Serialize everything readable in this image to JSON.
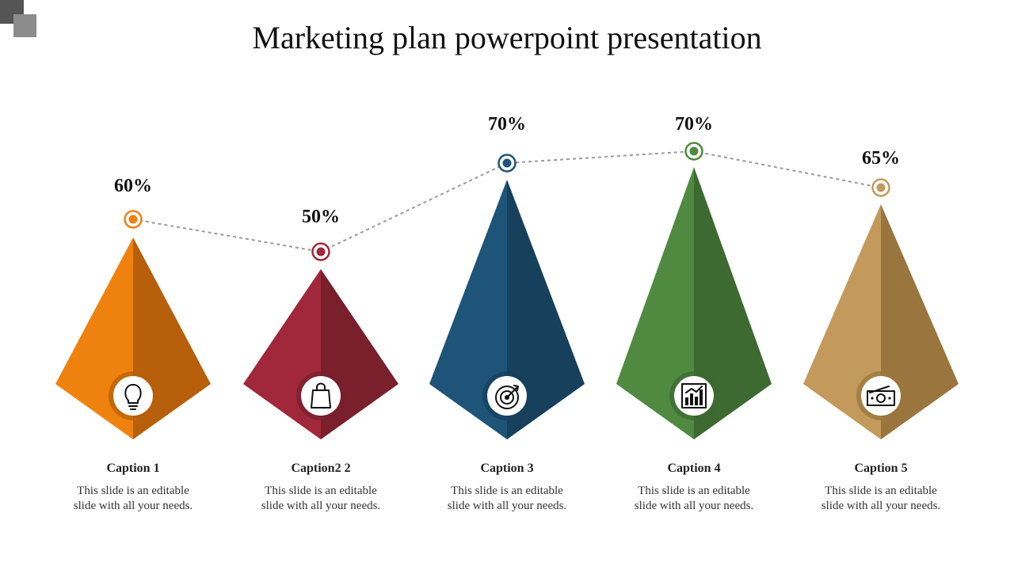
{
  "title": "Marketing plan powerpoint presentation",
  "items": [
    {
      "percent": "60%",
      "caption": "Caption 1",
      "desc_line1": "This slide is an editable",
      "desc_line2": "slide with all your needs.",
      "icon": "lightbulb-icon",
      "color_light": "#ef820e",
      "color_dark": "#b75f0a"
    },
    {
      "percent": "50%",
      "caption": "Caption2 2",
      "desc_line1": "This slide is an editable",
      "desc_line2": "slide with all your needs.",
      "icon": "shopping-bag-icon",
      "color_light": "#a0283a",
      "color_dark": "#7a1f2c"
    },
    {
      "percent": "70%",
      "caption": "Caption 3",
      "desc_line1": "This slide is an editable",
      "desc_line2": "slide with all your needs.",
      "icon": "target-icon",
      "color_light": "#1d5478",
      "color_dark": "#16405c"
    },
    {
      "percent": "70%",
      "caption": "Caption 4",
      "desc_line1": "This slide is an editable",
      "desc_line2": "slide with all your needs.",
      "icon": "bar-chart-icon",
      "color_light": "#4f8a40",
      "color_dark": "#3c6a31"
    },
    {
      "percent": "65%",
      "caption": "Caption 5",
      "desc_line1": "This slide is an editable",
      "desc_line2": "slide with all your needs.",
      "icon": "money-icon",
      "color_light": "#c39a5c",
      "color_dark": "#9a753d"
    }
  ]
}
